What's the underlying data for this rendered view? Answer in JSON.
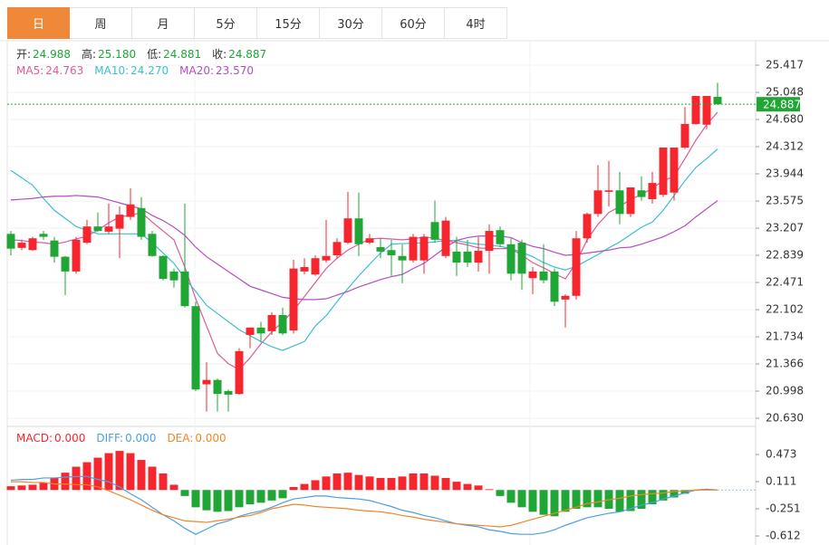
{
  "tabs": [
    "日",
    "周",
    "月",
    "5分",
    "15分",
    "30分",
    "60分",
    "4时"
  ],
  "selected_tab": 0,
  "chart_data": [
    {
      "type": "candlestick",
      "header": [
        {
          "label": "开:",
          "value": "24.988"
        },
        {
          "label": "高:",
          "value": "25.180"
        },
        {
          "label": "低:",
          "value": "24.881"
        },
        {
          "label": "收:",
          "value": "24.887"
        }
      ],
      "up_color": "#f5262d",
      "down_color": "#1fa634",
      "open": [
        23.13,
        22.94,
        22.91,
        23.13,
        23.04,
        22.82,
        22.62,
        23.01,
        23.23,
        23.16,
        23.2,
        23.36,
        23.48,
        23.13,
        22.83,
        22.62,
        22.62,
        22.15,
        21.09,
        21.15,
        21.0,
        20.96,
        21.76,
        21.86,
        21.81,
        22.03,
        21.82,
        22.62,
        22.58,
        22.77,
        22.84,
        23.01,
        23.34,
        23.01,
        22.95,
        22.91,
        22.83,
        22.77,
        22.77,
        23.29,
        22.83,
        22.89,
        22.89,
        22.74,
        22.9,
        23.18,
        22.99,
        23.01,
        22.53,
        22.62,
        22.62,
        22.24,
        22.29,
        23.07,
        23.4,
        23.7,
        23.72,
        23.4,
        23.72,
        23.6,
        23.66,
        23.69,
        24.3,
        24.62,
        24.61,
        24.988
      ],
      "high": [
        23.17,
        23.05,
        23.09,
        23.17,
        23.09,
        22.83,
        23.09,
        23.32,
        23.42,
        23.54,
        23.5,
        23.75,
        23.63,
        23.17,
        22.84,
        22.66,
        23.54,
        22.21,
        21.39,
        21.17,
        21.02,
        21.58,
        21.86,
        21.94,
        22.07,
        22.13,
        22.78,
        22.8,
        22.84,
        23.32,
        23.07,
        23.7,
        23.69,
        23.13,
        23.07,
        23.05,
        22.99,
        23.13,
        23.13,
        23.58,
        23.36,
        23.09,
        23.05,
        23.09,
        23.26,
        23.23,
        23.07,
        23.05,
        22.68,
        22.99,
        22.66,
        22.31,
        23.17,
        23.42,
        24.06,
        24.12,
        23.97,
        23.76,
        23.91,
        23.97,
        24.3,
        24.3,
        24.85,
        25.0,
        25.0,
        25.18
      ],
      "low": [
        22.84,
        22.91,
        22.9,
        23.05,
        22.74,
        22.3,
        22.59,
        22.99,
        23.16,
        23.13,
        22.8,
        23.32,
        23.05,
        22.82,
        22.5,
        22.4,
        22.13,
        21.0,
        20.72,
        20.72,
        20.72,
        20.95,
        21.58,
        21.66,
        21.76,
        21.76,
        21.78,
        22.58,
        22.56,
        22.74,
        22.8,
        22.99,
        22.83,
        22.99,
        22.8,
        22.56,
        22.46,
        22.74,
        22.59,
        23.01,
        22.8,
        22.56,
        22.68,
        22.62,
        22.59,
        22.95,
        22.5,
        22.37,
        22.31,
        22.46,
        22.15,
        21.86,
        22.24,
        23.01,
        23.36,
        23.5,
        23.26,
        23.36,
        23.58,
        23.54,
        23.63,
        23.58,
        24.28,
        24.61,
        24.55,
        24.881
      ],
      "close": [
        22.93,
        23.01,
        23.07,
        23.09,
        22.82,
        22.62,
        23.05,
        23.23,
        23.17,
        23.23,
        23.39,
        23.53,
        23.09,
        22.83,
        22.52,
        22.5,
        22.15,
        21.02,
        21.15,
        20.96,
        20.95,
        21.54,
        21.86,
        21.78,
        22.03,
        21.78,
        22.66,
        22.68,
        22.8,
        22.83,
        23.02,
        23.34,
        22.99,
        23.07,
        22.89,
        22.84,
        22.77,
        23.09,
        23.09,
        23.05,
        23.31,
        22.74,
        22.74,
        22.9,
        23.17,
        22.99,
        22.59,
        22.59,
        22.62,
        22.5,
        22.21,
        22.29,
        23.07,
        23.4,
        23.72,
        23.72,
        23.4,
        23.76,
        23.63,
        23.82,
        24.3,
        24.3,
        24.62,
        25.0,
        25.0,
        24.887
      ],
      "series": [
        {
          "name": "MA5:",
          "legend_value": "24.763",
          "color": "#e05a9c",
          "values": [
            23.05,
            23.04,
            23.02,
            23.01,
            22.99,
            23.02,
            23.06,
            23.1,
            23.18,
            23.28,
            23.36,
            23.38,
            23.42,
            23.29,
            23.17,
            23.05,
            22.68,
            22.25,
            21.88,
            21.51,
            21.37,
            21.29,
            21.45,
            21.64,
            21.8,
            21.94,
            22.09,
            22.28,
            22.47,
            22.66,
            22.8,
            22.91,
            22.99,
            23.06,
            23.07,
            23.06,
            23.05,
            23.06,
            23.09,
            23.07,
            23.04,
            23.01,
            22.98,
            22.94,
            22.93,
            22.93,
            22.93,
            22.84,
            22.74,
            22.67,
            22.59,
            22.52,
            22.74,
            23.05,
            23.26,
            23.42,
            23.5,
            23.6,
            23.66,
            23.75,
            23.85,
            23.91,
            24.15,
            24.4,
            24.61,
            24.78
          ]
        },
        {
          "name": "MA10:",
          "legend_value": "24.270",
          "color": "#3bbfcf",
          "values": [
            23.99,
            23.89,
            23.79,
            23.61,
            23.45,
            23.34,
            23.23,
            23.18,
            23.13,
            23.13,
            23.13,
            23.13,
            23.13,
            23.01,
            22.87,
            22.73,
            22.53,
            22.35,
            22.16,
            22.05,
            21.94,
            21.83,
            21.75,
            21.67,
            21.6,
            21.55,
            21.61,
            21.67,
            21.88,
            22.02,
            22.21,
            22.39,
            22.56,
            22.72,
            22.87,
            22.99,
            23.0,
            23.0,
            23.01,
            23.02,
            23.04,
            23.04,
            23.01,
            22.99,
            22.98,
            22.96,
            22.93,
            22.88,
            22.82,
            22.74,
            22.68,
            22.64,
            22.69,
            22.77,
            22.85,
            22.94,
            23.02,
            23.12,
            23.22,
            23.29,
            23.45,
            23.65,
            23.85,
            24.03,
            24.15,
            24.28
          ]
        },
        {
          "name": "MA20:",
          "legend_value": "23.570",
          "color": "#b24fc2",
          "values": [
            23.59,
            23.6,
            23.61,
            23.63,
            23.64,
            23.64,
            23.65,
            23.64,
            23.63,
            23.59,
            23.55,
            23.51,
            23.47,
            23.38,
            23.31,
            23.22,
            23.11,
            22.95,
            22.82,
            22.72,
            22.62,
            22.52,
            22.42,
            22.37,
            22.32,
            22.27,
            22.25,
            22.24,
            22.24,
            22.25,
            22.3,
            22.35,
            22.41,
            22.46,
            22.51,
            22.55,
            22.58,
            22.66,
            22.73,
            22.84,
            22.95,
            23.04,
            23.08,
            23.1,
            23.1,
            23.1,
            23.08,
            23.01,
            22.96,
            22.93,
            22.88,
            22.84,
            22.85,
            22.87,
            22.89,
            22.91,
            22.94,
            22.95,
            22.99,
            23.04,
            23.09,
            23.16,
            23.24,
            23.36,
            23.47,
            23.58
          ]
        }
      ],
      "ylim": [
        20.532,
        25.687
      ],
      "yticks": [
        25.417,
        25.048,
        {
          "value": 24.68,
          "label": "24.680"
        },
        24.312,
        23.944,
        23.575,
        23.207,
        22.839,
        22.471,
        22.102,
        21.734,
        21.366,
        20.998,
        {
          "value": 20.63,
          "label": "20.630"
        }
      ],
      "last_price": {
        "value": 24.887,
        "label": "24.887"
      },
      "grid": true
    },
    {
      "type": "macd",
      "histogram": {
        "name": "MACD:",
        "legend_value": "0.000",
        "color": "#f5262d",
        "negative_color": "#1fa634",
        "values": [
          0.05,
          0.06,
          0.07,
          0.1,
          0.16,
          0.23,
          0.31,
          0.37,
          0.43,
          0.49,
          0.52,
          0.49,
          0.4,
          0.31,
          0.22,
          0.07,
          -0.08,
          -0.23,
          -0.27,
          -0.29,
          -0.28,
          -0.23,
          -0.19,
          -0.17,
          -0.14,
          -0.11,
          0.04,
          0.08,
          0.13,
          0.18,
          0.22,
          0.23,
          0.2,
          0.18,
          0.16,
          0.16,
          0.18,
          0.22,
          0.22,
          0.19,
          0.16,
          0.11,
          0.08,
          0.06,
          0.01,
          -0.08,
          -0.17,
          -0.23,
          -0.29,
          -0.33,
          -0.35,
          -0.29,
          -0.25,
          -0.23,
          -0.23,
          -0.25,
          -0.29,
          -0.28,
          -0.25,
          -0.19,
          -0.14,
          -0.1,
          -0.05,
          -0.01,
          0.0,
          0.0
        ]
      },
      "series": [
        {
          "name": "DIFF:",
          "legend_value": "0.000",
          "color": "#4a9fe6",
          "values": [
            0.13,
            0.14,
            0.14,
            0.16,
            0.16,
            0.17,
            0.18,
            0.18,
            0.14,
            0.11,
            0.04,
            -0.05,
            -0.13,
            -0.23,
            -0.33,
            -0.41,
            -0.51,
            -0.59,
            -0.52,
            -0.45,
            -0.41,
            -0.35,
            -0.31,
            -0.28,
            -0.23,
            -0.17,
            -0.12,
            -0.1,
            -0.08,
            -0.08,
            -0.1,
            -0.11,
            -0.12,
            -0.14,
            -0.18,
            -0.22,
            -0.27,
            -0.3,
            -0.34,
            -0.37,
            -0.41,
            -0.45,
            -0.47,
            -0.49,
            -0.53,
            -0.55,
            -0.58,
            -0.59,
            -0.59,
            -0.57,
            -0.53,
            -0.47,
            -0.42,
            -0.37,
            -0.34,
            -0.31,
            -0.29,
            -0.25,
            -0.2,
            -0.17,
            -0.12,
            -0.08,
            -0.04,
            0.0,
            0.01,
            0.0
          ]
        },
        {
          "name": "DEA:",
          "legend_value": "0.000",
          "color": "#f0862a",
          "values": [
            0.11,
            0.11,
            0.1,
            0.1,
            0.08,
            0.08,
            0.07,
            0.07,
            0.04,
            -0.01,
            -0.07,
            -0.13,
            -0.2,
            -0.27,
            -0.33,
            -0.37,
            -0.41,
            -0.42,
            -0.43,
            -0.41,
            -0.39,
            -0.36,
            -0.34,
            -0.3,
            -0.25,
            -0.22,
            -0.19,
            -0.2,
            -0.22,
            -0.23,
            -0.24,
            -0.25,
            -0.27,
            -0.28,
            -0.29,
            -0.31,
            -0.34,
            -0.36,
            -0.39,
            -0.41,
            -0.43,
            -0.45,
            -0.46,
            -0.47,
            -0.48,
            -0.49,
            -0.47,
            -0.43,
            -0.39,
            -0.35,
            -0.31,
            -0.27,
            -0.23,
            -0.18,
            -0.16,
            -0.13,
            -0.11,
            -0.08,
            -0.06,
            -0.05,
            -0.04,
            -0.02,
            -0.01,
            0.0,
            0.0,
            0.0
          ]
        }
      ],
      "ylim": [
        -0.708,
        0.762
      ],
      "yticks": [
        0.473,
        0.111,
        -0.251,
        -0.612
      ],
      "grid": false
    }
  ]
}
